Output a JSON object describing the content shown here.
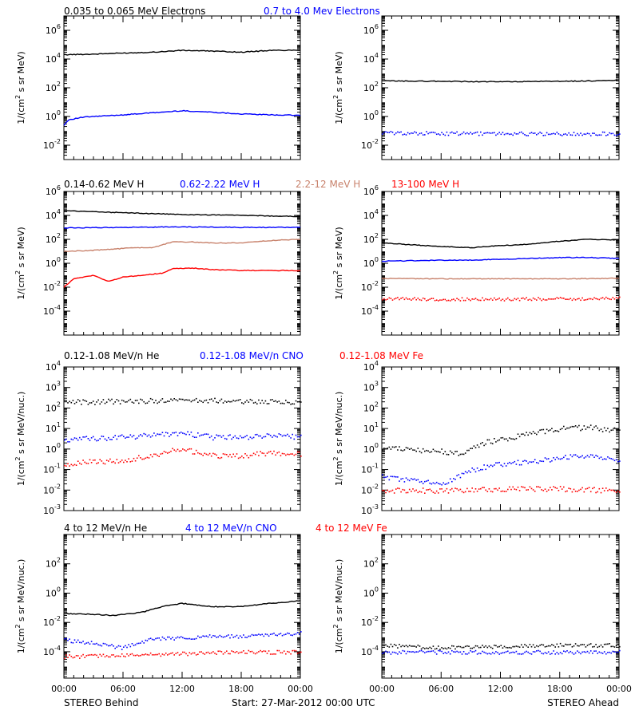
{
  "footer": {
    "left": "STEREO Behind",
    "center": "Start: 27-Mar-2012 00:00 UTC",
    "right": "STEREO Ahead"
  },
  "x_axis": {
    "unit": "hours",
    "xlim": [
      0,
      24
    ],
    "tick_values": [
      0,
      6,
      12,
      18,
      24
    ],
    "tick_labels": [
      "00:00",
      "06:00",
      "12:00",
      "18:00",
      "00:00"
    ]
  },
  "colors": {
    "black": "#000000",
    "blue": "#0000ff",
    "brown": "#c8826c",
    "red": "#ff0000"
  },
  "rows": [
    {
      "id": "electrons",
      "ylabel": "1/(cm² s sr MeV)",
      "ylim_log10": [
        -3,
        7
      ],
      "yticks_log10": [
        -2,
        0,
        2,
        4,
        6
      ],
      "legend": [
        {
          "text": "0.035 to 0.065 MeV Electrons",
          "color": "black"
        },
        {
          "text": "0.7 to 4.0 Mev Electrons",
          "color": "blue"
        }
      ]
    },
    {
      "id": "protons",
      "ylabel": "1/(cm² s sr MeV)",
      "ylim_log10": [
        -6,
        6
      ],
      "yticks_log10": [
        -4,
        -2,
        0,
        2,
        4,
        6
      ],
      "legend": [
        {
          "text": "0.14-0.62 MeV H",
          "color": "black"
        },
        {
          "text": "0.62-2.22 MeV H",
          "color": "blue"
        },
        {
          "text": "2.2-12 MeV H",
          "color": "brown"
        },
        {
          "text": "13-100 MeV H",
          "color": "red"
        }
      ]
    },
    {
      "id": "low-energy-ions",
      "ylabel": "1/(cm² s sr MeV/nuc.)",
      "ylim_log10": [
        -3,
        4
      ],
      "yticks_log10": [
        -3,
        -2,
        -1,
        0,
        1,
        2,
        3,
        4
      ],
      "legend": [
        {
          "text": "0.12-1.08 MeV/n He",
          "color": "black"
        },
        {
          "text": "0.12-1.08 MeV/n CNO",
          "color": "blue"
        },
        {
          "text": "0.12-1.08 MeV Fe",
          "color": "red"
        }
      ]
    },
    {
      "id": "high-energy-ions",
      "ylabel": "1/(cm² s sr MeV/nuc.)",
      "ylim_log10": [
        -5.8,
        4
      ],
      "yticks_log10": [
        -4,
        -2,
        0,
        2
      ],
      "legend": [
        {
          "text": "4 to 12 MeV/n He",
          "color": "black"
        },
        {
          "text": "4 to 12 MeV/n CNO",
          "color": "blue"
        },
        {
          "text": "4 to 12 MeV Fe",
          "color": "red"
        }
      ]
    }
  ],
  "chart_data": [
    {
      "type": "line",
      "panel": "behind-electrons",
      "log_y": true,
      "grid": false,
      "xlabel": "",
      "ylabel": "1/(cm² s sr MeV)",
      "xlim": [
        0,
        24
      ],
      "ylim": [
        0.001,
        10000000
      ],
      "series": [
        {
          "name": "0.035 to 0.065 MeV Electrons",
          "color": "black",
          "style": "line",
          "x": [
            0,
            3,
            6,
            9,
            12,
            15,
            18,
            21,
            24
          ],
          "y": [
            20000,
            22000,
            26000,
            30000,
            40000,
            36000,
            30000,
            40000,
            42000
          ]
        },
        {
          "name": "0.7 to 4.0 Mev Electrons",
          "color": "blue",
          "style": "line",
          "x": [
            0,
            0.5,
            2,
            6,
            9,
            12,
            15,
            18,
            21,
            24
          ],
          "y": [
            0.25,
            0.6,
            0.9,
            1.3,
            1.8,
            2.5,
            2,
            1.5,
            1.3,
            1.2
          ]
        }
      ]
    },
    {
      "type": "line",
      "panel": "ahead-electrons",
      "log_y": true,
      "grid": false,
      "xlabel": "",
      "ylabel": "1/(cm² s sr MeV)",
      "xlim": [
        0,
        24
      ],
      "ylim": [
        0.001,
        10000000
      ],
      "series": [
        {
          "name": "0.035 to 0.065 MeV Electrons",
          "color": "black",
          "style": "line",
          "x": [
            0,
            6,
            12,
            18,
            24
          ],
          "y": [
            300,
            280,
            260,
            280,
            320
          ]
        },
        {
          "name": "0.7 to 4.0 Mev Electrons",
          "color": "blue",
          "style": "points",
          "x": [
            0,
            6,
            12,
            18,
            24
          ],
          "y": [
            0.08,
            0.07,
            0.07,
            0.065,
            0.07
          ]
        }
      ]
    },
    {
      "type": "line",
      "panel": "behind-protons",
      "log_y": true,
      "grid": false,
      "xlabel": "",
      "ylabel": "1/(cm² s sr MeV)",
      "xlim": [
        0,
        24
      ],
      "ylim": [
        1e-06,
        1000000
      ],
      "series": [
        {
          "name": "0.14-0.62 MeV H",
          "color": "black",
          "style": "line",
          "x": [
            0,
            3,
            6,
            9,
            12,
            15,
            18,
            21,
            24
          ],
          "y": [
            25000,
            20000,
            17000,
            14000,
            12000,
            11000,
            10000,
            9000,
            8000
          ]
        },
        {
          "name": "0.62-2.22 MeV H",
          "color": "blue",
          "style": "line",
          "x": [
            0,
            6,
            12,
            18,
            24
          ],
          "y": [
            900,
            1000,
            1100,
            1000,
            1000
          ]
        },
        {
          "name": "2.2-12 MeV H",
          "color": "brown",
          "style": "line",
          "x": [
            0,
            3,
            5,
            7,
            9,
            11,
            13,
            15,
            18,
            21,
            24
          ],
          "y": [
            10,
            12,
            15,
            20,
            20,
            60,
            60,
            50,
            50,
            80,
            100
          ]
        },
        {
          "name": "13-100 MeV H",
          "color": "red",
          "style": "line",
          "x": [
            0,
            1,
            3,
            4.5,
            6,
            8,
            10,
            11,
            13,
            15,
            18,
            21,
            24
          ],
          "y": [
            0.01,
            0.05,
            0.1,
            0.03,
            0.07,
            0.1,
            0.15,
            0.35,
            0.4,
            0.3,
            0.25,
            0.25,
            0.25
          ]
        }
      ]
    },
    {
      "type": "line",
      "panel": "ahead-protons",
      "log_y": true,
      "grid": false,
      "xlabel": "",
      "ylabel": "1/(cm² s sr MeV)",
      "xlim": [
        0,
        24
      ],
      "ylim": [
        1e-06,
        1000000
      ],
      "series": [
        {
          "name": "0.14-0.62 MeV H",
          "color": "black",
          "style": "line",
          "x": [
            0,
            3,
            6,
            9,
            12,
            15,
            18,
            21,
            24
          ],
          "y": [
            50,
            35,
            25,
            20,
            30,
            40,
            70,
            100,
            90
          ]
        },
        {
          "name": "0.62-2.22 MeV H",
          "color": "blue",
          "style": "line",
          "x": [
            0,
            6,
            9,
            12,
            15,
            18,
            21,
            24
          ],
          "y": [
            1.5,
            1.8,
            1.8,
            2.2,
            2.5,
            3,
            3,
            2.5
          ]
        },
        {
          "name": "2.2-12 MeV H",
          "color": "brown",
          "style": "line",
          "x": [
            0,
            6,
            12,
            18,
            24
          ],
          "y": [
            0.055,
            0.05,
            0.05,
            0.05,
            0.055
          ]
        },
        {
          "name": "13-100 MeV H",
          "color": "red",
          "style": "points",
          "x": [
            0,
            6,
            12,
            18,
            24
          ],
          "y": [
            0.0012,
            0.0011,
            0.0011,
            0.0012,
            0.0013
          ]
        }
      ]
    },
    {
      "type": "scatter",
      "panel": "behind-low-energy-ions",
      "log_y": true,
      "grid": false,
      "xlabel": "",
      "ylabel": "1/(cm² s sr MeV/nuc.)",
      "xlim": [
        0,
        24
      ],
      "ylim": [
        0.001,
        10000
      ],
      "series": [
        {
          "name": "0.12-1.08 MeV/n He",
          "color": "black",
          "style": "points",
          "x": [
            0,
            6,
            12,
            18,
            24
          ],
          "y": [
            200,
            220,
            250,
            230,
            200
          ]
        },
        {
          "name": "0.12-1.08 MeV/n CNO",
          "color": "blue",
          "style": "points",
          "x": [
            0,
            3,
            6,
            9,
            12,
            15,
            18,
            21,
            24
          ],
          "y": [
            3,
            3.5,
            4,
            5,
            6,
            4,
            4,
            5,
            4
          ]
        },
        {
          "name": "0.12-1.08 MeV Fe",
          "color": "red",
          "style": "points",
          "x": [
            0,
            3,
            6,
            9,
            10.5,
            12,
            15,
            18,
            21,
            24
          ],
          "y": [
            0.2,
            0.25,
            0.3,
            0.5,
            0.8,
            1,
            0.5,
            0.5,
            0.7,
            0.6
          ]
        }
      ]
    },
    {
      "type": "scatter",
      "panel": "ahead-low-energy-ions",
      "log_y": true,
      "grid": false,
      "xlabel": "",
      "ylabel": "1/(cm² s sr MeV/nuc.)",
      "xlim": [
        0,
        24
      ],
      "ylim": [
        0.001,
        10000
      ],
      "series": [
        {
          "name": "0.12-1.08 MeV/n He",
          "color": "black",
          "style": "points",
          "x": [
            0,
            3,
            6,
            8,
            10,
            12,
            15,
            18,
            21,
            24
          ],
          "y": [
            1.2,
            1,
            0.8,
            0.6,
            2,
            3,
            6,
            10,
            12,
            8
          ]
        },
        {
          "name": "0.12-1.08 MeV/n CNO",
          "color": "blue",
          "style": "points",
          "x": [
            0,
            3,
            6,
            9,
            12,
            15,
            18,
            21,
            24
          ],
          "y": [
            0.05,
            0.03,
            0.02,
            0.1,
            0.2,
            0.25,
            0.4,
            0.5,
            0.3
          ]
        },
        {
          "name": "0.12-1.08 MeV Fe",
          "color": "red",
          "style": "points",
          "x": [
            0,
            6,
            12,
            18,
            24
          ],
          "y": [
            0.01,
            0.01,
            0.012,
            0.012,
            0.01
          ]
        }
      ]
    },
    {
      "type": "scatter",
      "panel": "behind-high-energy-ions",
      "log_y": true,
      "grid": false,
      "xlabel": "",
      "ylabel": "1/(cm² s sr MeV/nuc.)",
      "xlim": [
        0,
        24
      ],
      "ylim": [
        1.6e-06,
        10000
      ],
      "series": [
        {
          "name": "4 to 12 MeV/n He",
          "color": "black",
          "style": "line",
          "x": [
            0,
            3,
            5,
            6,
            8,
            10,
            12,
            15,
            18,
            21,
            24
          ],
          "y": [
            0.04,
            0.035,
            0.03,
            0.035,
            0.05,
            0.12,
            0.2,
            0.12,
            0.12,
            0.2,
            0.3
          ]
        },
        {
          "name": "4 to 12 MeV/n CNO",
          "color": "blue",
          "style": "points",
          "x": [
            0,
            3,
            6,
            9,
            12,
            15,
            18,
            21,
            24
          ],
          "y": [
            0.0007,
            0.0004,
            0.0002,
            0.0008,
            0.001,
            0.0012,
            0.0012,
            0.0015,
            0.002
          ]
        },
        {
          "name": "4 to 12 MeV Fe",
          "color": "red",
          "style": "points",
          "x": [
            0,
            6,
            12,
            18,
            24
          ],
          "y": [
            5e-05,
            6e-05,
            8e-05,
            0.0001,
            0.0001
          ]
        }
      ]
    },
    {
      "type": "scatter",
      "panel": "ahead-high-energy-ions",
      "log_y": true,
      "grid": false,
      "xlabel": "",
      "ylabel": "1/(cm² s sr MeV/nuc.)",
      "xlim": [
        0,
        24
      ],
      "ylim": [
        1.6e-06,
        10000
      ],
      "series": [
        {
          "name": "4 to 12 MeV/n He",
          "color": "black",
          "style": "points",
          "x": [
            0,
            6,
            12,
            18,
            24
          ],
          "y": [
            0.0003,
            0.0002,
            0.00025,
            0.0003,
            0.0003
          ]
        },
        {
          "name": "4 to 12 MeV/n CNO",
          "color": "blue",
          "style": "points",
          "x": [
            0,
            6,
            12,
            18,
            24
          ],
          "y": [
            0.0001,
            0.0001,
            0.0001,
            0.0001,
            0.0001
          ]
        }
      ]
    }
  ]
}
